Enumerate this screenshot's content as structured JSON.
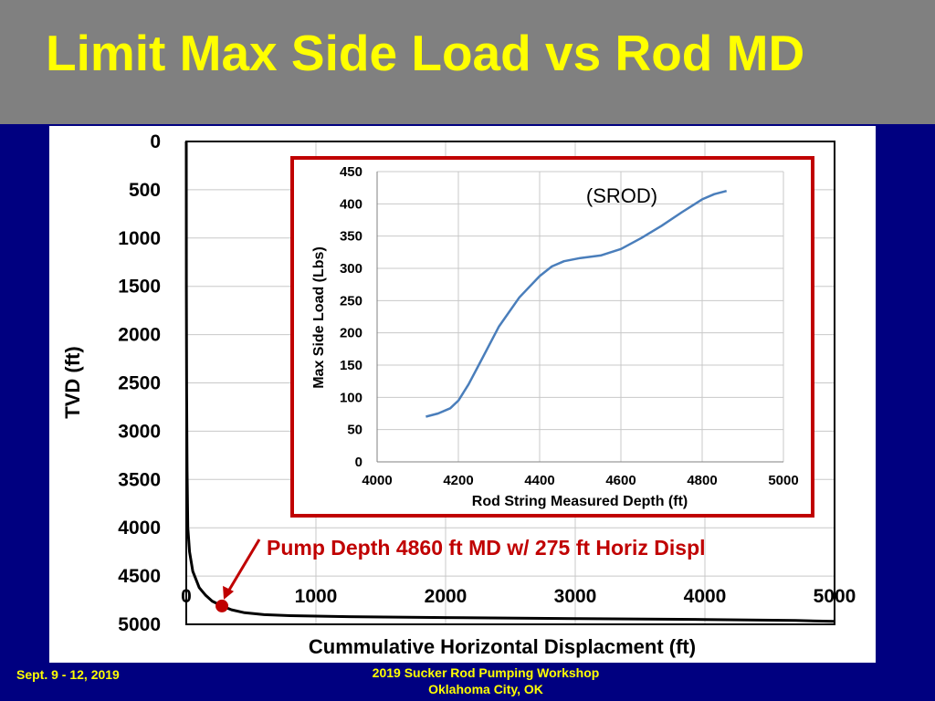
{
  "slide": {
    "title": "Limit Max Side Load vs Rod MD",
    "footer_left": "Sept. 9 - 12, 2019",
    "footer_center_line1": "2019 Sucker Rod Pumping Workshop",
    "footer_center_line2": "Oklahoma City, OK"
  },
  "chart_data": [
    {
      "type": "line",
      "title": "",
      "xlabel": "Cummulative Horizontal Displacment (ft)",
      "ylabel": "TVD (ft)",
      "xlim": [
        0,
        5000
      ],
      "ylim": [
        0,
        5000
      ],
      "y_inverted": true,
      "xticks": [
        "0",
        "1000",
        "2000",
        "3000",
        "4000",
        "5000"
      ],
      "yticks": [
        "0",
        "500",
        "1000",
        "1500",
        "2000",
        "2500",
        "3000",
        "3500",
        "4000",
        "4500",
        "5000"
      ],
      "grid": true,
      "line_color": "#000000",
      "annotation": {
        "text": "Pump Depth 4860 ft MD w/ 275 ft Horiz Displ",
        "color": "#c00000",
        "point": {
          "x": 275,
          "y": 4810
        }
      },
      "series": [
        {
          "x": [
            0,
            1,
            3,
            6,
            12,
            25,
            50,
            100,
            150,
            200,
            275,
            350,
            450,
            600,
            800,
            1200,
            2000,
            3000,
            4000,
            4700,
            5000
          ],
          "y": [
            0,
            1500,
            2600,
            3400,
            4000,
            4250,
            4450,
            4620,
            4700,
            4760,
            4810,
            4850,
            4880,
            4900,
            4910,
            4920,
            4930,
            4940,
            4950,
            4960,
            4970
          ]
        }
      ]
    },
    {
      "type": "line",
      "title": "(SROD)",
      "xlabel": "Rod String Measured Depth (ft)",
      "ylabel": "Max Side Load (Lbs)",
      "xlim": [
        4000,
        5000
      ],
      "ylim": [
        0,
        450
      ],
      "xticks": [
        "4000",
        "4200",
        "4400",
        "4600",
        "4800",
        "5000"
      ],
      "yticks": [
        "0",
        "50",
        "100",
        "150",
        "200",
        "250",
        "300",
        "350",
        "400",
        "450"
      ],
      "grid": true,
      "line_color": "#4a7ebb",
      "border_color": "#c00000",
      "series": [
        {
          "x": [
            4120,
            4150,
            4180,
            4200,
            4225,
            4250,
            4300,
            4350,
            4400,
            4430,
            4460,
            4500,
            4550,
            4600,
            4650,
            4700,
            4750,
            4800,
            4830,
            4860
          ],
          "y": [
            70,
            75,
            83,
            95,
            120,
            150,
            210,
            255,
            288,
            303,
            311,
            316,
            320,
            330,
            347,
            366,
            387,
            407,
            415,
            420
          ]
        }
      ]
    }
  ]
}
